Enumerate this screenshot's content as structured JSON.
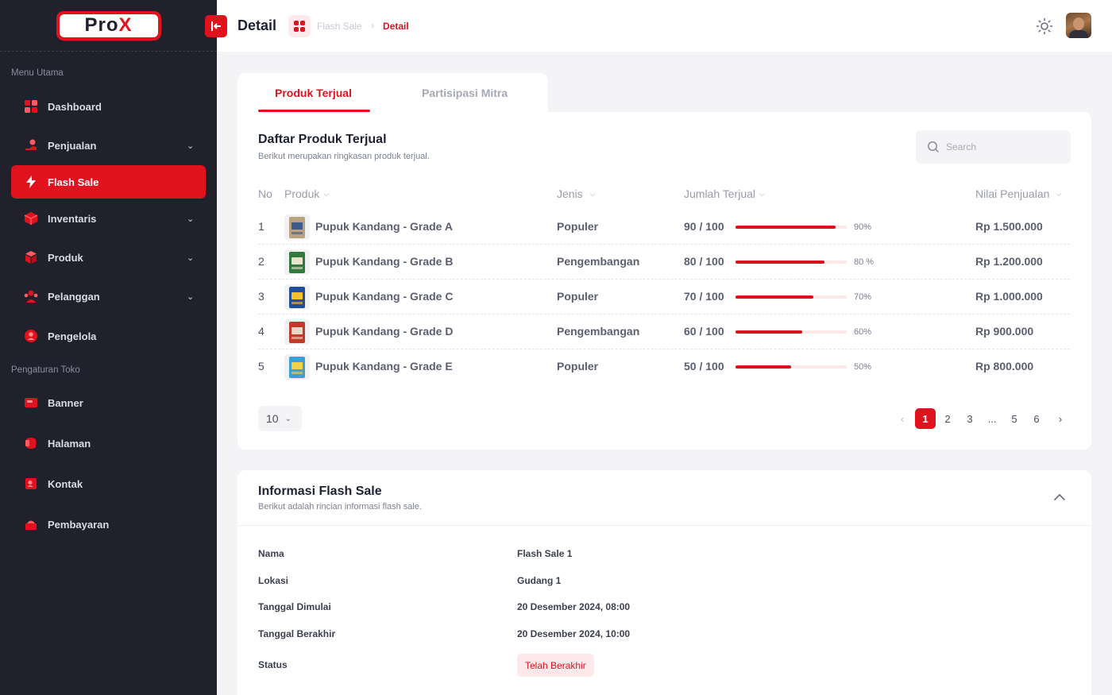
{
  "app": {
    "logo_text_1": "Pro",
    "logo_text_2": "X"
  },
  "sidebar": {
    "section_main": "Menu Utama",
    "section_store": "Pengaturan Toko",
    "items": [
      {
        "label": "Dashboard",
        "icon": "dashboard-icon"
      },
      {
        "label": "Penjualan",
        "icon": "sales-icon",
        "expandable": true
      },
      {
        "label": "Flash Sale",
        "icon": "flash-icon",
        "active": true
      },
      {
        "label": "Inventaris",
        "icon": "inventory-icon",
        "expandable": true
      },
      {
        "label": "Produk",
        "icon": "product-icon",
        "expandable": true
      },
      {
        "label": "Pelanggan",
        "icon": "customer-icon",
        "expandable": true
      },
      {
        "label": "Pengelola",
        "icon": "manager-icon"
      },
      {
        "label": "Banner",
        "icon": "banner-icon"
      },
      {
        "label": "Halaman",
        "icon": "page-icon"
      },
      {
        "label": "Kontak",
        "icon": "contact-icon"
      },
      {
        "label": "Pembayaran",
        "icon": "payment-icon"
      }
    ]
  },
  "header": {
    "title": "Detail",
    "breadcrumb": [
      "Flash Sale",
      "Detail"
    ]
  },
  "tabs": [
    {
      "label": "Produk Terjual",
      "active": true
    },
    {
      "label": "Partisipasi Mitra",
      "active": false
    }
  ],
  "products_card": {
    "title": "Daftar Produk Terjual",
    "subtitle": "Berikut merupakan ringkasan produk terjual.",
    "search_placeholder": "Search",
    "columns": {
      "no": "No",
      "produk": "Produk",
      "jenis": "Jenis",
      "jumlah": "Jumlah Terjual",
      "nilai": "Nilai Penjualan"
    },
    "rows": [
      {
        "no": "1",
        "name": "Pupuk Kandang - Grade A",
        "jenis": "Populer",
        "qty": "90 / 100",
        "progress": 0.9,
        "pct": "90%",
        "nilai": "Rp 1.500.000"
      },
      {
        "no": "2",
        "name": "Pupuk Kandang - Grade B",
        "jenis": "Pengembangan",
        "qty": "80 / 100",
        "progress": 0.8,
        "pct": "80 %",
        "nilai": "Rp 1.200.000"
      },
      {
        "no": "3",
        "name": "Pupuk Kandang - Grade C",
        "jenis": "Populer",
        "qty": "70 / 100",
        "progress": 0.7,
        "pct": "70%",
        "nilai": "Rp 1.000.000"
      },
      {
        "no": "4",
        "name": "Pupuk Kandang - Grade D",
        "jenis": "Pengembangan",
        "qty": "60 / 100",
        "progress": 0.6,
        "pct": "60%",
        "nilai": "Rp 900.000"
      },
      {
        "no": "5",
        "name": "Pupuk Kandang - Grade E",
        "jenis": "Populer",
        "qty": "50 / 100",
        "progress": 0.5,
        "pct": "50%",
        "nilai": "Rp 800.000"
      }
    ],
    "per_page": "10",
    "pagination": [
      "1",
      "2",
      "3",
      "...",
      "5",
      "6"
    ],
    "current_page": "1"
  },
  "info_card": {
    "title": "Informasi Flash Sale",
    "subtitle": "Berikut adalah rincian informasi flash sale.",
    "fields": [
      {
        "label": "Nama",
        "value": "Flash Sale 1"
      },
      {
        "label": "Lokasi",
        "value": "Gudang 1"
      },
      {
        "label": "Tanggal Dimulai",
        "value": "20 Desember 2024, 08:00"
      },
      {
        "label": "Tanggal Berakhir",
        "value": "20 Desember 2024, 10:00"
      },
      {
        "label": "Status",
        "value": "Telah Berakhir"
      }
    ]
  },
  "colors": {
    "accent": "#e0121e",
    "sidebar_bg": "#20212d",
    "page_bg": "#f4f4f6"
  }
}
